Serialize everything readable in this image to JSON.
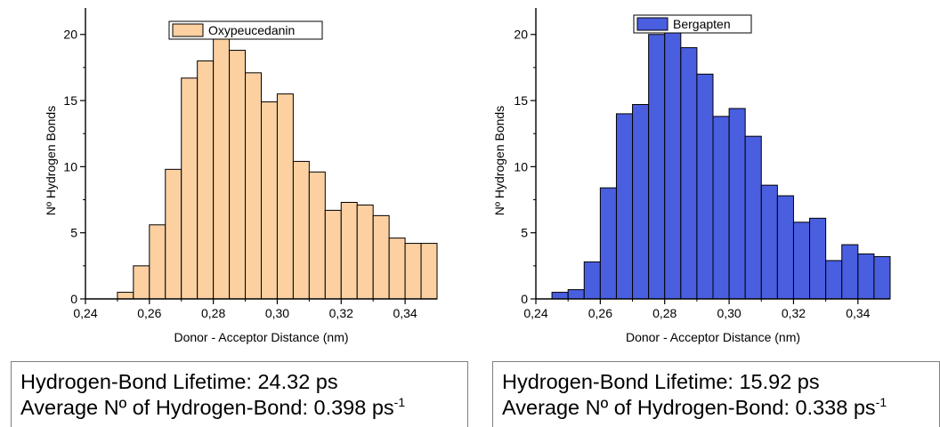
{
  "chart_data": [
    {
      "type": "bar",
      "xlabel": "Donor - Acceptor Distance (nm)",
      "ylabel": "Nº Hydrogen Bonds",
      "xlim": [
        0.24,
        0.35
      ],
      "ylim": [
        0,
        22
      ],
      "xticks": [
        "0,24",
        "0,26",
        "0,28",
        "0,30",
        "0,32",
        "0,34"
      ],
      "yticks": [
        "0",
        "5",
        "10",
        "15",
        "20"
      ],
      "bin_width": 0.005,
      "color": "#fcd0a1",
      "legend_position": "top-center",
      "series": [
        {
          "name": "Oxypeucedanin",
          "x": [
            0.2525,
            0.2575,
            0.2625,
            0.2675,
            0.2725,
            0.2775,
            0.2825,
            0.2875,
            0.2925,
            0.2975,
            0.3025,
            0.3075,
            0.3125,
            0.3175,
            0.3225,
            0.3275,
            0.3325,
            0.3375,
            0.3425,
            0.3475
          ],
          "values": [
            0.5,
            2.5,
            5.6,
            9.8,
            16.7,
            18.0,
            19.8,
            18.8,
            17.1,
            14.9,
            15.5,
            10.4,
            9.6,
            6.7,
            7.3,
            7.1,
            6.3,
            4.6,
            4.2,
            4.2
          ]
        }
      ]
    },
    {
      "type": "bar",
      "xlabel": "Donor - Acceptor Distance (nm)",
      "ylabel": "Nº Hydrogen Bonds",
      "xlim": [
        0.24,
        0.35
      ],
      "ylim": [
        0,
        22
      ],
      "xticks": [
        "0,24",
        "0,26",
        "0,28",
        "0,30",
        "0,32",
        "0,34"
      ],
      "yticks": [
        "0",
        "5",
        "10",
        "15",
        "20"
      ],
      "bin_width": 0.005,
      "color": "#4a5ee0",
      "legend_position": "top-center",
      "series": [
        {
          "name": "Bergapten",
          "x": [
            0.2475,
            0.2525,
            0.2575,
            0.2625,
            0.2675,
            0.2725,
            0.2775,
            0.2825,
            0.2875,
            0.2925,
            0.2975,
            0.3025,
            0.3075,
            0.3125,
            0.3175,
            0.3225,
            0.3275,
            0.3325,
            0.3375,
            0.3425,
            0.3475
          ],
          "values": [
            0.5,
            0.7,
            2.8,
            8.4,
            14.0,
            14.7,
            20.0,
            20.5,
            19.0,
            17.0,
            13.8,
            14.4,
            12.3,
            8.6,
            7.8,
            5.8,
            6.1,
            2.9,
            4.1,
            3.4,
            3.2
          ]
        }
      ]
    }
  ],
  "info": [
    {
      "lifetime": "Hydrogen-Bond Lifetime: 24.32 ps",
      "average": "Average Nº of Hydrogen-Bond: 0.398 ps",
      "unit_sup": "-1"
    },
    {
      "lifetime": "Hydrogen-Bond Lifetime: 15.92 ps",
      "average": "Average Nº of Hydrogen-Bond: 0.338 ps",
      "unit_sup": "-1"
    }
  ]
}
